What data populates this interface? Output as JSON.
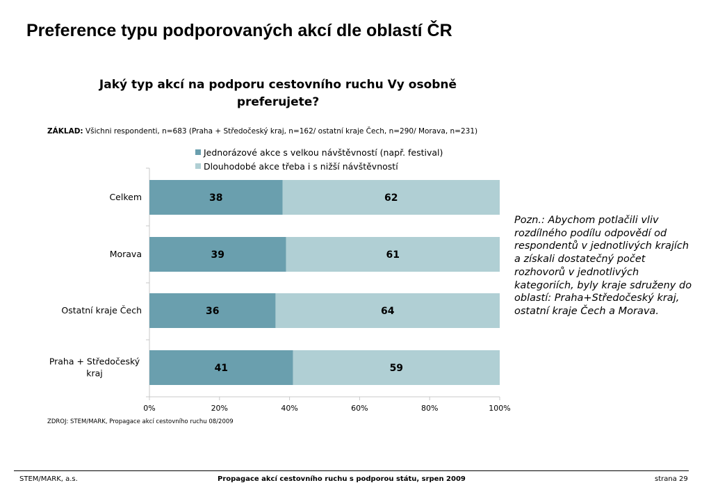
{
  "page": {
    "title": "Preference typu podporovaných akcí dle oblastí ČR",
    "basis_label": "ZÁKLAD:",
    "basis_text": " Všichni respondenti, n=683 (Praha + Středočeský kraj, n=162/ ostatní kraje Čech, n=290/ Morava, n=231)",
    "note": "Pozn.: Abychom potlačili vliv rozdílného podílu odpovědí od respondentů v jednotlivých krajích a získali dostatečný počet rozhovorů v jednotlivých kategoriích, byly kraje sdruženy do oblastí:  Praha+Středočeský kraj, ostatní kraje Čech a Morava.",
    "source": "ZDROJ: STEM/MARK, Propagace akcí cestovního ruchu 08/2009"
  },
  "footer": {
    "left": "STEM/MARK, a.s.",
    "center": "Propagace akcí cestovního ruchu s podporou státu, srpen 2009",
    "right": "strana 29"
  },
  "chart_data": {
    "type": "bar",
    "orientation": "horizontal",
    "stacked": true,
    "title": "Jaký typ akcí na podporu cestovního ruchu Vy osobně preferujete?",
    "categories": [
      "Celkem",
      "Morava",
      "Ostatní kraje Čech",
      "Praha + Středočeský kraj"
    ],
    "series": [
      {
        "name": "Jednorázové akce s velkou návštěvností (např. festival)",
        "values": [
          38,
          39,
          36,
          41
        ],
        "color": "#6a9fae"
      },
      {
        "name": "Dlouhodobé akce třeba i s nižší návštěvností",
        "values": [
          62,
          61,
          64,
          59
        ],
        "color": "#b0cfd4"
      }
    ],
    "xlim": [
      0,
      100
    ],
    "x_ticks": [
      "0%",
      "20%",
      "40%",
      "60%",
      "80%",
      "100%"
    ],
    "legend_position": "top",
    "grid": false
  }
}
